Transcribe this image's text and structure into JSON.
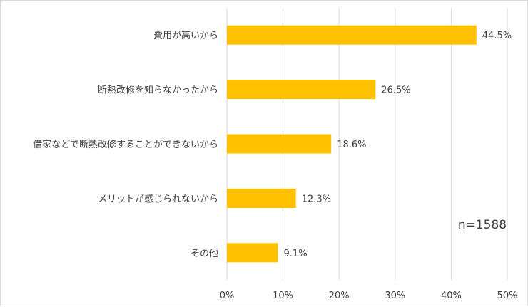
{
  "chart_data": {
    "type": "bar",
    "orientation": "horizontal",
    "categories": [
      "費用が高いから",
      "断熱改修を知らなかったから",
      "借家などで断熱改修することができないから",
      "メリットが感じられないから",
      "その他"
    ],
    "values": [
      44.5,
      26.5,
      18.6,
      12.3,
      9.1
    ],
    "data_labels": [
      "44.5%",
      "26.5%",
      "18.6%",
      "12.3%",
      "9.1%"
    ],
    "xlim": [
      0,
      50
    ],
    "x_ticks": [
      0,
      10,
      20,
      30,
      40,
      50
    ],
    "x_tick_labels": [
      "0%",
      "10%",
      "20%",
      "30%",
      "40%",
      "50%"
    ],
    "grid": true,
    "legend": "none",
    "annotation": "n=1588",
    "bar_color": "#ffc000"
  }
}
